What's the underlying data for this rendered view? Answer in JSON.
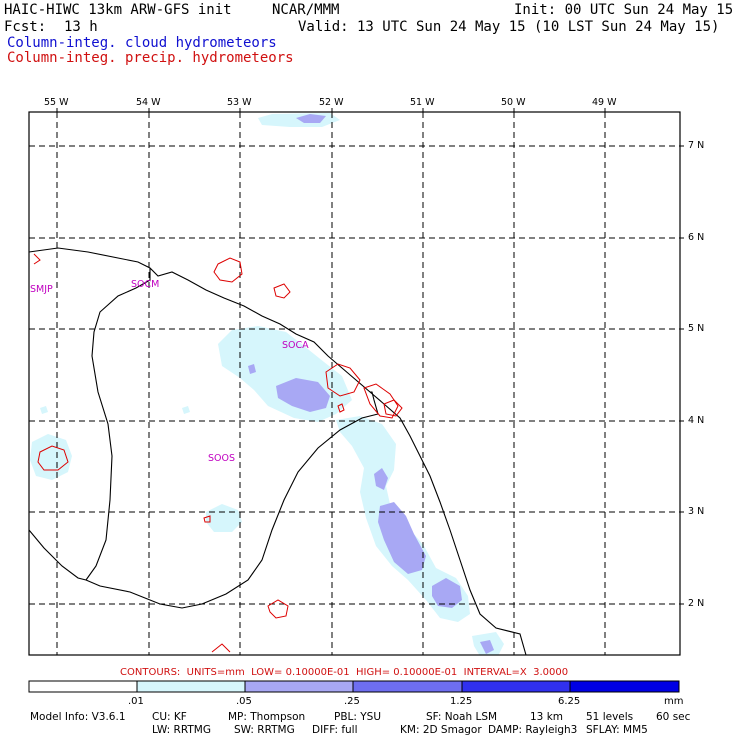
{
  "header": {
    "model_title": "HAIC-HIWC 13km ARW-GFS init",
    "org": "NCAR/MMM",
    "init": "Init: 00 UTC Sun 24 May 15",
    "fcst_label": "Fcst:",
    "fcst_value": "13 h",
    "valid": "Valid: 13 UTC Sun 24 May 15 (10 LST Sun 24 May 15)",
    "field_cloud": "Column-integ. cloud hydrometeors",
    "field_precip": "Column-integ. precip. hydrometeors"
  },
  "colors": {
    "cloud_title": "#1010d0",
    "precip_title": "#d01010",
    "station": "#c000c0",
    "fill_1": "#d6f6fc",
    "fill_2": "#a8a8f4",
    "fill_3": "#6e6ef0",
    "fill_4": "#3030ee",
    "fill_5": "#0000e4"
  },
  "map": {
    "longitudes": [
      "55 W",
      "54 W",
      "53 W",
      "52 W",
      "51 W",
      "50 W",
      "49 W"
    ],
    "latitudes": [
      "7 N",
      "6 N",
      "5 N",
      "4 N",
      "3 N",
      "2 N"
    ],
    "stations": [
      "SMJP",
      "SOCM",
      "SOCA",
      "SOOS"
    ]
  },
  "contours_line": "CONTOURS:  UNITS=mm  LOW= 0.10000E-01  HIGH= 0.10000E-01  INTERVAL=X  3.0000",
  "colorbar": {
    "ticks": [
      ".01",
      ".05",
      ".25",
      "1.25",
      "6.25"
    ],
    "unit": "mm"
  },
  "footer": {
    "line1": [
      "Model Info: V3.6.1",
      "CU: KF",
      "MP: Thompson",
      "PBL: YSU",
      "SF: Noah LSM",
      "13 km",
      "51 levels",
      "60 sec"
    ],
    "line2": [
      "LW: RRTMG",
      "SW: RRTMG",
      "DIFF: full",
      "KM: 2D Smagor",
      "DAMP: Rayleigh3",
      "SFLAY: MM5"
    ]
  }
}
